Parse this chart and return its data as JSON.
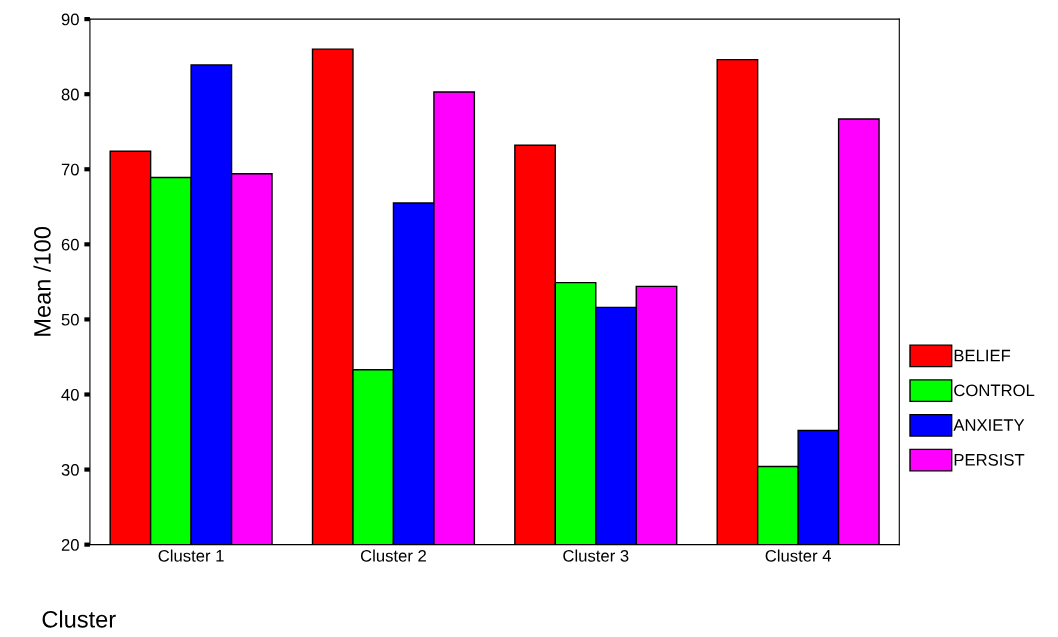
{
  "chart_data": {
    "type": "bar",
    "xlabel": "Cluster",
    "ylabel": "Mean /100",
    "categories": [
      "Cluster 1",
      "Cluster 2",
      "Cluster 3",
      "Cluster 4"
    ],
    "series": [
      {
        "name": "BELIEF",
        "color": "#ff0000",
        "values": [
          72.4,
          86.0,
          73.2,
          84.6
        ]
      },
      {
        "name": "CONTROL",
        "color": "#00ff00",
        "values": [
          68.9,
          43.3,
          54.9,
          30.4
        ]
      },
      {
        "name": "ANXIETY",
        "color": "#0000ff",
        "values": [
          83.9,
          65.5,
          51.6,
          35.2
        ]
      },
      {
        "name": "PERSIST",
        "color": "#ff00ff",
        "values": [
          69.4,
          80.3,
          54.4,
          76.7
        ]
      }
    ],
    "ylim": [
      20,
      90
    ],
    "yticks": [
      20,
      30,
      40,
      50,
      60,
      70,
      80,
      90
    ],
    "grid": false,
    "legend": "right"
  }
}
